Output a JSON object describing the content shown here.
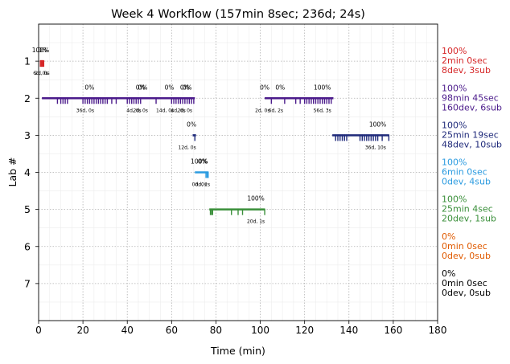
{
  "chart_data": {
    "type": "timeline",
    "title": "Week 4 Workflow (157min 8sec; 236d; 24s)",
    "xlabel": "Time (min)",
    "ylabel": "Lab #",
    "xlim": [
      0,
      180
    ],
    "ylim": [
      8,
      0
    ],
    "x_ticks": [
      0,
      20,
      40,
      60,
      80,
      100,
      120,
      140,
      160,
      180
    ],
    "y_ticks": [
      1,
      2,
      3,
      4,
      5,
      6,
      7
    ],
    "grid": true,
    "labs": [
      {
        "lab": 1,
        "color": "#d62728",
        "summary": [
          "100%",
          "2min 0sec",
          "8dev, 3sub"
        ],
        "segments": [
          [
            0.7,
            2.3
          ]
        ],
        "ticks": [
          0.8,
          1.2,
          1.6,
          2.0,
          2.3
        ],
        "pct_labels": [
          {
            "x": 0.9,
            "text": "100%"
          },
          {
            "x": 1.9,
            "text": "0%"
          }
        ],
        "seg_labels": [
          {
            "x": 0.9,
            "text": "6d, 0s"
          },
          {
            "x": 1.6,
            "text": "2d, 0s"
          }
        ]
      },
      {
        "lab": 2,
        "color": "#4b1b8b",
        "summary": [
          "100%",
          "98min 45sec",
          "160dev, 6sub"
        ],
        "segments": [
          [
            1.5,
            70.5
          ],
          [
            102.0,
            133.0
          ]
        ],
        "ticks": [
          8.5,
          10,
          11,
          12,
          13,
          20,
          21,
          22,
          23,
          24,
          25,
          26,
          27,
          28,
          29,
          30,
          31,
          33,
          35,
          40,
          41,
          42,
          43,
          44,
          45,
          46,
          53,
          60,
          61,
          62,
          63,
          64,
          65,
          66,
          67,
          68,
          69,
          70,
          105,
          111,
          116,
          118,
          120,
          121,
          122,
          123,
          124,
          125,
          126,
          127,
          128,
          129,
          130,
          131,
          132
        ],
        "pct_labels": [
          {
            "x": 23,
            "text": "0%"
          },
          {
            "x": 46,
            "text": "0%"
          },
          {
            "x": 47,
            "text": "0%"
          },
          {
            "x": 59,
            "text": "0%"
          },
          {
            "x": 66,
            "text": "0%"
          },
          {
            "x": 67,
            "text": "0%"
          },
          {
            "x": 102,
            "text": "0%"
          },
          {
            "x": 109,
            "text": "0%"
          },
          {
            "x": 128,
            "text": "100%"
          }
        ],
        "seg_labels": [
          {
            "x": 21,
            "text": "36d, 0s"
          },
          {
            "x": 43,
            "text": "4d, 0s"
          },
          {
            "x": 46,
            "text": "2d, 0s"
          },
          {
            "x": 57,
            "text": "14d, 0s"
          },
          {
            "x": 63,
            "text": "4d, 0s"
          },
          {
            "x": 66,
            "text": "2d, 0s"
          },
          {
            "x": 101,
            "text": "2d, 0s"
          },
          {
            "x": 107,
            "text": "6d, 2s"
          },
          {
            "x": 128,
            "text": "56d, 3s"
          }
        ]
      },
      {
        "lab": 3,
        "color": "#1f2a7a",
        "summary": [
          "100%",
          "25min 19sec",
          "48dev, 10sub"
        ],
        "segments": [
          [
            69.5,
            71.0
          ],
          [
            132.5,
            158.0
          ]
        ],
        "ticks": [
          70.5,
          134,
          135,
          136,
          137,
          138,
          139,
          145,
          146,
          147,
          148,
          149,
          150,
          151,
          152,
          153,
          155,
          158
        ],
        "pct_labels": [
          {
            "x": 69,
            "text": "0%"
          },
          {
            "x": 153,
            "text": "100%"
          }
        ],
        "seg_labels": [
          {
            "x": 67,
            "text": "12d, 0s"
          },
          {
            "x": 152,
            "text": "36d, 10s"
          }
        ]
      },
      {
        "lab": 4,
        "color": "#2b9be0",
        "summary": [
          "100%",
          "6min 0sec",
          "0dev, 4sub"
        ],
        "segments": [
          [
            70.5,
            76.5
          ]
        ],
        "ticks": [
          75.5,
          76.0,
          76.5
        ],
        "pct_labels": [
          {
            "x": 72.5,
            "text": "100%"
          },
          {
            "x": 74,
            "text": "0%"
          }
        ],
        "seg_labels": [
          {
            "x": 72.5,
            "text": "0d, 0s"
          },
          {
            "x": 74,
            "text": "0d, 2s"
          }
        ]
      },
      {
        "lab": 5,
        "color": "#3a8f3a",
        "summary": [
          "100%",
          "25min 4sec",
          "20dev, 1sub"
        ],
        "segments": [
          [
            77.0,
            102.0
          ]
        ],
        "ticks": [
          77.5,
          78,
          78.5,
          87,
          90,
          92,
          102
        ],
        "pct_labels": [
          {
            "x": 98,
            "text": "100%"
          }
        ],
        "seg_labels": [
          {
            "x": 98,
            "text": "20d, 1s"
          }
        ]
      },
      {
        "lab": 6,
        "color": "#e05a00",
        "summary": [
          "0%",
          "0min 0sec",
          "0dev, 0sub"
        ],
        "segments": [],
        "ticks": [],
        "pct_labels": [],
        "seg_labels": []
      },
      {
        "lab": 7,
        "color": "#000000",
        "summary": [
          "0%",
          "0min 0sec",
          "0dev, 0sub"
        ],
        "segments": [],
        "ticks": [],
        "pct_labels": [],
        "seg_labels": []
      }
    ]
  }
}
